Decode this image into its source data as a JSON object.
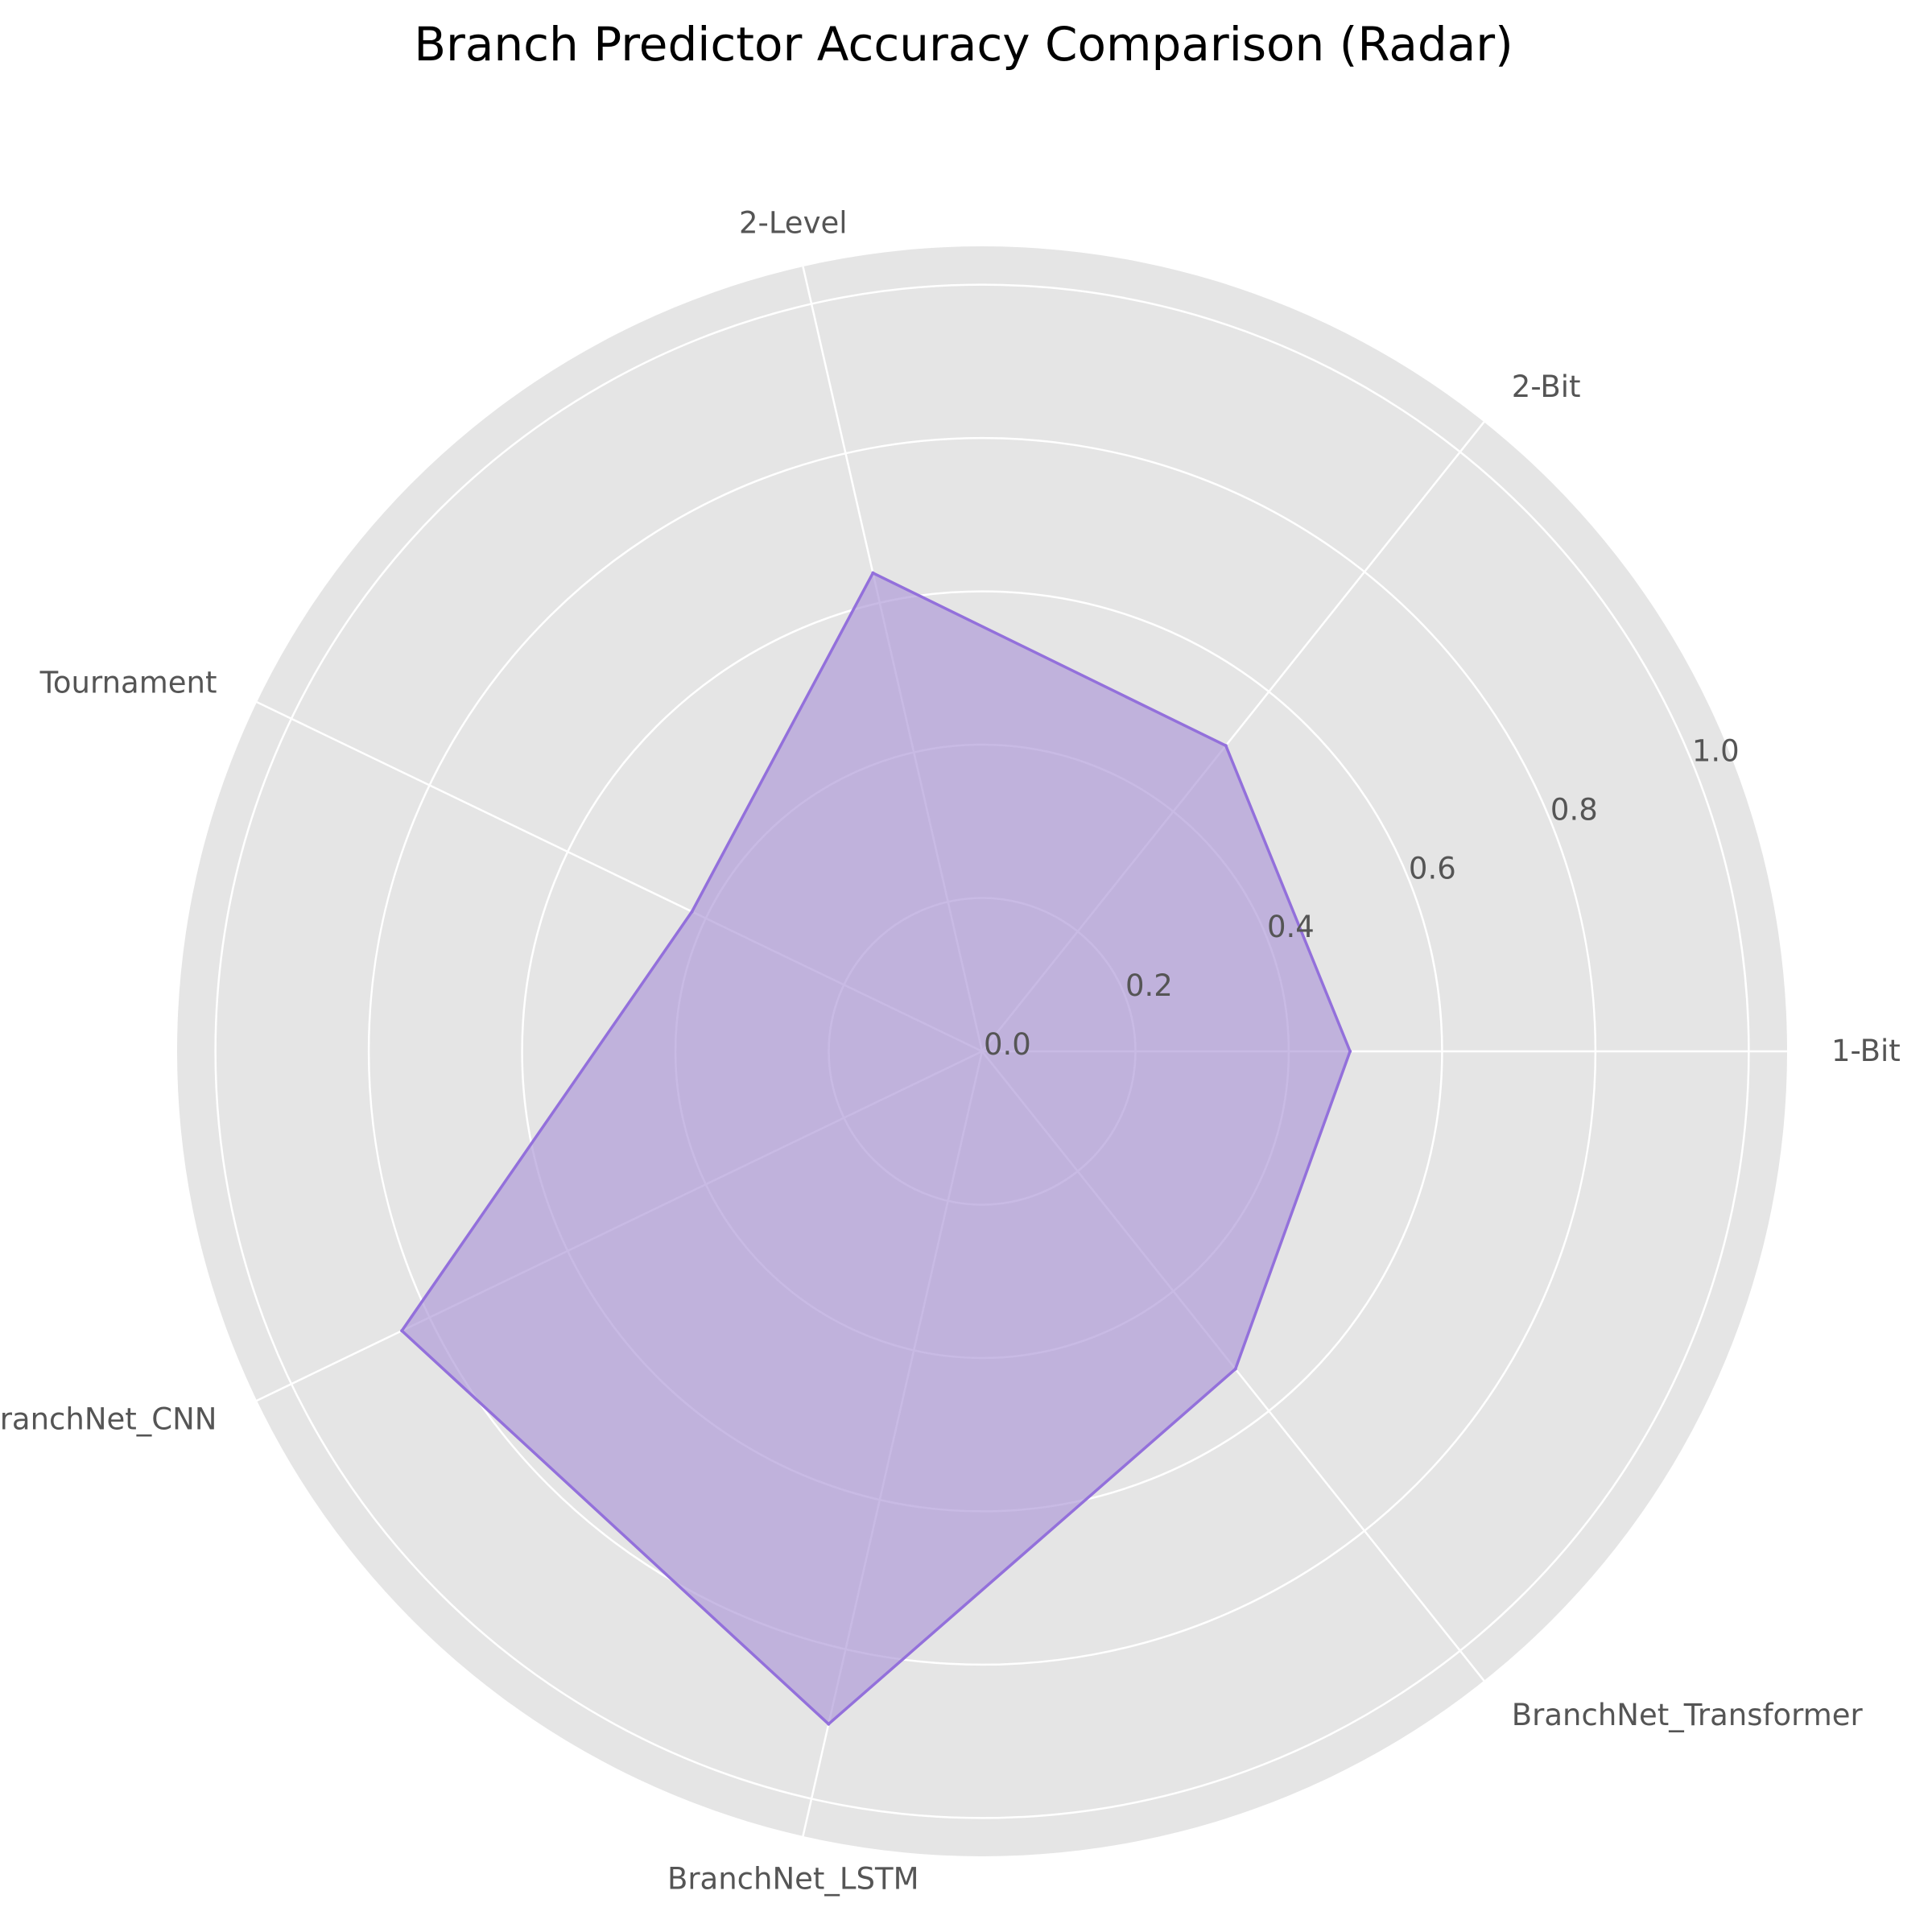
{
  "chart_data": {
    "type": "radar",
    "title": "Branch Predictor Accuracy Comparison (Radar)",
    "categories": [
      "1-Bit",
      "2-Bit",
      "2-Level",
      "Tournament",
      "BranchNet_CNN",
      "BranchNet_LSTM",
      "BranchNet_Transformer"
    ],
    "series": [
      {
        "name": "",
        "values": [
          0.48,
          0.51,
          0.64,
          0.42,
          0.84,
          0.9,
          0.53
        ]
      }
    ],
    "rticks": [
      0.0,
      0.2,
      0.4,
      0.6,
      0.8,
      1.0
    ],
    "rtick_labels": [
      "0.0",
      "0.2",
      "0.4",
      "0.6",
      "0.8",
      "1.0"
    ],
    "rlim": [
      0,
      1.05
    ],
    "grid": true,
    "colors": {
      "background": "#e5e5e5",
      "grid": "#ffffff",
      "series_line": "#9370db",
      "series_fill": "#b19cd9"
    }
  }
}
